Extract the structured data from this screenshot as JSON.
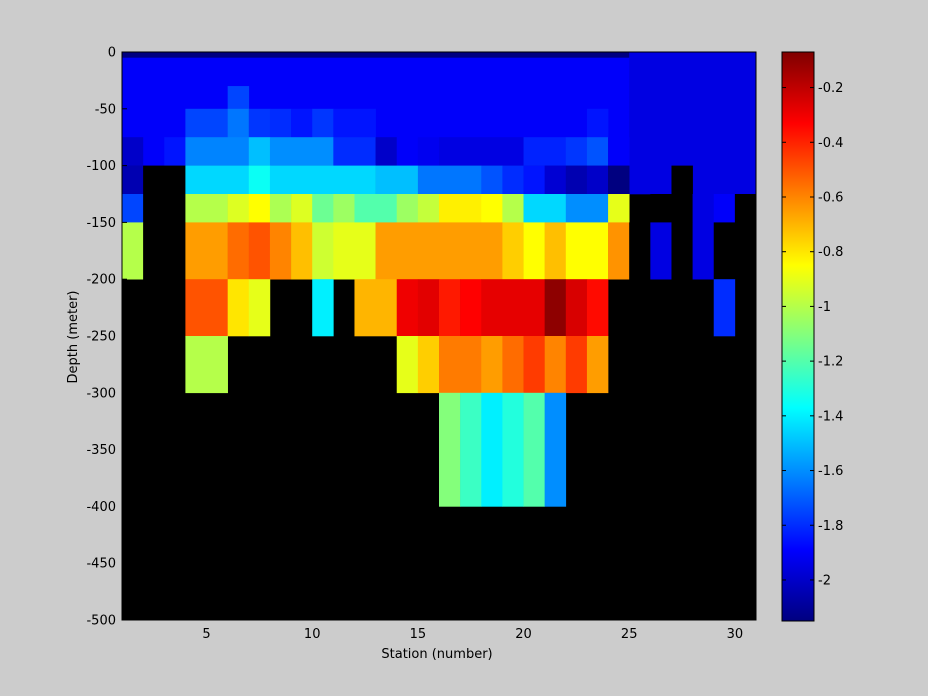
{
  "chart_data": {
    "type": "heatmap",
    "title": "",
    "xlabel": "Station (number)",
    "ylabel": "Depth (meter)",
    "xlim": [
      1,
      31
    ],
    "ylim": [
      -500,
      0
    ],
    "xticks": [
      5,
      10,
      15,
      20,
      25,
      30
    ],
    "yticks": [
      0,
      -50,
      -100,
      -150,
      -200,
      -250,
      -300,
      -350,
      -400,
      -450,
      -500
    ],
    "colorbar": {
      "range": [
        -2.15,
        -0.07
      ],
      "ticks": [
        -0.2,
        -0.4,
        -0.6,
        -0.8,
        -1,
        -1.2,
        -1.4,
        -1.6,
        -1.8,
        -2
      ],
      "colormap": "jet",
      "low_color": "#0000ff",
      "high_color": "#800000"
    },
    "background_color": "#000000",
    "cells": [
      {
        "x0": 1,
        "x1": 25,
        "y0": -5,
        "y1": 0,
        "v": -2.15
      },
      {
        "x0": 1,
        "x1": 25,
        "y0": -75,
        "y1": -5,
        "v": -1.9
      },
      {
        "x0": 25,
        "x1": 31,
        "y0": -125,
        "y1": 0,
        "v": -1.95
      },
      {
        "x0": 6,
        "x1": 7,
        "y0": -50,
        "y1": -30,
        "v": -1.75
      },
      {
        "x0": 4,
        "x1": 6,
        "y0": -75,
        "y1": -50,
        "v": -1.75
      },
      {
        "x0": 6,
        "x1": 7,
        "y0": -75,
        "y1": -50,
        "v": -1.65
      },
      {
        "x0": 7,
        "x1": 8,
        "y0": -75,
        "y1": -50,
        "v": -1.78
      },
      {
        "x0": 8,
        "x1": 9,
        "y0": -75,
        "y1": -50,
        "v": -1.8
      },
      {
        "x0": 9,
        "x1": 10,
        "y0": -75,
        "y1": -50,
        "v": -1.85
      },
      {
        "x0": 10,
        "x1": 11,
        "y0": -75,
        "y1": -50,
        "v": -1.78
      },
      {
        "x0": 11,
        "x1": 13,
        "y0": -75,
        "y1": -50,
        "v": -1.85
      },
      {
        "x0": 23,
        "x1": 24,
        "y0": -75,
        "y1": -50,
        "v": -1.85
      },
      {
        "x0": 1,
        "x1": 2,
        "y0": -100,
        "y1": -75,
        "v": -2.0
      },
      {
        "x0": 2,
        "x1": 3,
        "y0": -100,
        "y1": -75,
        "v": -1.9
      },
      {
        "x0": 3,
        "x1": 4,
        "y0": -100,
        "y1": -75,
        "v": -1.85
      },
      {
        "x0": 4,
        "x1": 7,
        "y0": -100,
        "y1": -75,
        "v": -1.62
      },
      {
        "x0": 7,
        "x1": 8,
        "y0": -100,
        "y1": -75,
        "v": -1.5
      },
      {
        "x0": 8,
        "x1": 11,
        "y0": -100,
        "y1": -75,
        "v": -1.6
      },
      {
        "x0": 11,
        "x1": 13,
        "y0": -100,
        "y1": -75,
        "v": -1.8
      },
      {
        "x0": 13,
        "x1": 14,
        "y0": -100,
        "y1": -75,
        "v": -2.0
      },
      {
        "x0": 14,
        "x1": 15,
        "y0": -100,
        "y1": -75,
        "v": -1.9
      },
      {
        "x0": 15,
        "x1": 16,
        "y0": -100,
        "y1": -75,
        "v": -1.92
      },
      {
        "x0": 16,
        "x1": 20,
        "y0": -100,
        "y1": -75,
        "v": -1.95
      },
      {
        "x0": 20,
        "x1": 22,
        "y0": -100,
        "y1": -75,
        "v": -1.82
      },
      {
        "x0": 22,
        "x1": 23,
        "y0": -100,
        "y1": -75,
        "v": -1.78
      },
      {
        "x0": 23,
        "x1": 24,
        "y0": -100,
        "y1": -75,
        "v": -1.72
      },
      {
        "x0": 24,
        "x1": 25,
        "y0": -100,
        "y1": -75,
        "v": -1.9
      },
      {
        "x0": 1,
        "x1": 2,
        "y0": -125,
        "y1": -100,
        "v": -2.05
      },
      {
        "x0": 2,
        "x1": 4,
        "y0": -125,
        "y1": -100,
        "v": null
      },
      {
        "x0": 4,
        "x1": 7,
        "y0": -125,
        "y1": -100,
        "v": -1.45
      },
      {
        "x0": 7,
        "x1": 8,
        "y0": -125,
        "y1": -100,
        "v": -1.35
      },
      {
        "x0": 8,
        "x1": 13,
        "y0": -125,
        "y1": -100,
        "v": -1.45
      },
      {
        "x0": 13,
        "x1": 15,
        "y0": -125,
        "y1": -100,
        "v": -1.5
      },
      {
        "x0": 15,
        "x1": 18,
        "y0": -125,
        "y1": -100,
        "v": -1.65
      },
      {
        "x0": 18,
        "x1": 19,
        "y0": -125,
        "y1": -100,
        "v": -1.72
      },
      {
        "x0": 19,
        "x1": 20,
        "y0": -125,
        "y1": -100,
        "v": -1.8
      },
      {
        "x0": 20,
        "x1": 21,
        "y0": -125,
        "y1": -100,
        "v": -1.85
      },
      {
        "x0": 21,
        "x1": 22,
        "y0": -125,
        "y1": -100,
        "v": -1.98
      },
      {
        "x0": 22,
        "x1": 23,
        "y0": -125,
        "y1": -100,
        "v": -2.05
      },
      {
        "x0": 23,
        "x1": 24,
        "y0": -125,
        "y1": -100,
        "v": -2.0
      },
      {
        "x0": 24,
        "x1": 25,
        "y0": -125,
        "y1": -100,
        "v": -2.15
      },
      {
        "x0": 27,
        "x1": 28,
        "y0": -125,
        "y1": -100,
        "v": null
      },
      {
        "x0": 1,
        "x1": 2,
        "y0": -150,
        "y1": -125,
        "v": -1.75
      },
      {
        "x0": 2,
        "x1": 4,
        "y0": -150,
        "y1": -125,
        "v": null
      },
      {
        "x0": 4,
        "x1": 6,
        "y0": -150,
        "y1": -125,
        "v": -1.0
      },
      {
        "x0": 6,
        "x1": 7,
        "y0": -150,
        "y1": -125,
        "v": -0.92
      },
      {
        "x0": 7,
        "x1": 8,
        "y0": -150,
        "y1": -125,
        "v": -0.85
      },
      {
        "x0": 8,
        "x1": 9,
        "y0": -150,
        "y1": -125,
        "v": -1.02
      },
      {
        "x0": 9,
        "x1": 10,
        "y0": -150,
        "y1": -125,
        "v": -0.92
      },
      {
        "x0": 10,
        "x1": 11,
        "y0": -150,
        "y1": -125,
        "v": -1.15
      },
      {
        "x0": 11,
        "x1": 12,
        "y0": -150,
        "y1": -125,
        "v": -1.05
      },
      {
        "x0": 12,
        "x1": 14,
        "y0": -150,
        "y1": -125,
        "v": -1.2
      },
      {
        "x0": 14,
        "x1": 15,
        "y0": -150,
        "y1": -125,
        "v": -1.05
      },
      {
        "x0": 15,
        "x1": 16,
        "y0": -150,
        "y1": -125,
        "v": -0.97
      },
      {
        "x0": 16,
        "x1": 18,
        "y0": -150,
        "y1": -125,
        "v": -0.82
      },
      {
        "x0": 18,
        "x1": 19,
        "y0": -150,
        "y1": -125,
        "v": -0.85
      },
      {
        "x0": 19,
        "x1": 20,
        "y0": -150,
        "y1": -125,
        "v": -1.0
      },
      {
        "x0": 20,
        "x1": 22,
        "y0": -150,
        "y1": -125,
        "v": -1.45
      },
      {
        "x0": 22,
        "x1": 24,
        "y0": -150,
        "y1": -125,
        "v": -1.6
      },
      {
        "x0": 24,
        "x1": 25,
        "y0": -150,
        "y1": -125,
        "v": -0.9
      },
      {
        "x0": 26,
        "x1": 28,
        "y0": -150,
        "y1": -125,
        "v": null
      },
      {
        "x0": 28,
        "x1": 29,
        "y0": -150,
        "y1": -125,
        "v": -1.95
      },
      {
        "x0": 29,
        "x1": 30,
        "y0": -150,
        "y1": -125,
        "v": -1.9
      },
      {
        "x0": 30,
        "x1": 31,
        "y0": -150,
        "y1": -125,
        "v": null
      },
      {
        "x0": 1,
        "x1": 2,
        "y0": -200,
        "y1": -150,
        "v": -1.0
      },
      {
        "x0": 2,
        "x1": 4,
        "y0": -200,
        "y1": -150,
        "v": null
      },
      {
        "x0": 4,
        "x1": 6,
        "y0": -200,
        "y1": -150,
        "v": -0.65
      },
      {
        "x0": 6,
        "x1": 7,
        "y0": -200,
        "y1": -150,
        "v": -0.55
      },
      {
        "x0": 7,
        "x1": 8,
        "y0": -200,
        "y1": -150,
        "v": -0.5
      },
      {
        "x0": 8,
        "x1": 9,
        "y0": -200,
        "y1": -150,
        "v": -0.6
      },
      {
        "x0": 9,
        "x1": 10,
        "y0": -200,
        "y1": -150,
        "v": -0.72
      },
      {
        "x0": 10,
        "x1": 11,
        "y0": -200,
        "y1": -150,
        "v": -0.95
      },
      {
        "x0": 11,
        "x1": 13,
        "y0": -200,
        "y1": -150,
        "v": -0.9
      },
      {
        "x0": 13,
        "x1": 19,
        "y0": -200,
        "y1": -150,
        "v": -0.65
      },
      {
        "x0": 19,
        "x1": 20,
        "y0": -200,
        "y1": -150,
        "v": -0.75
      },
      {
        "x0": 20,
        "x1": 21,
        "y0": -200,
        "y1": -150,
        "v": -0.85
      },
      {
        "x0": 21,
        "x1": 22,
        "y0": -200,
        "y1": -150,
        "v": -0.72
      },
      {
        "x0": 22,
        "x1": 24,
        "y0": -200,
        "y1": -150,
        "v": -0.85
      },
      {
        "x0": 24,
        "x1": 25,
        "y0": -200,
        "y1": -150,
        "v": -0.63
      },
      {
        "x0": 25,
        "x1": 26,
        "y0": -200,
        "y1": -150,
        "v": null
      },
      {
        "x0": 26,
        "x1": 27,
        "y0": -200,
        "y1": -150,
        "v": -1.95
      },
      {
        "x0": 27,
        "x1": 28,
        "y0": -200,
        "y1": -150,
        "v": null
      },
      {
        "x0": 28,
        "x1": 29,
        "y0": -200,
        "y1": -150,
        "v": -1.95
      },
      {
        "x0": 29,
        "x1": 31,
        "y0": -200,
        "y1": -150,
        "v": null
      },
      {
        "x0": 4,
        "x1": 6,
        "y0": -250,
        "y1": -200,
        "v": -0.5
      },
      {
        "x0": 6,
        "x1": 7,
        "y0": -250,
        "y1": -200,
        "v": -0.8
      },
      {
        "x0": 7,
        "x1": 8,
        "y0": -250,
        "y1": -200,
        "v": -0.9
      },
      {
        "x0": 10,
        "x1": 11,
        "y0": -250,
        "y1": -200,
        "v": -1.4
      },
      {
        "x0": 12,
        "x1": 14,
        "y0": -250,
        "y1": -200,
        "v": -0.7
      },
      {
        "x0": 14,
        "x1": 15,
        "y0": -250,
        "y1": -200,
        "v": -0.3
      },
      {
        "x0": 15,
        "x1": 16,
        "y0": -250,
        "y1": -200,
        "v": -0.27
      },
      {
        "x0": 16,
        "x1": 17,
        "y0": -250,
        "y1": -200,
        "v": -0.38
      },
      {
        "x0": 17,
        "x1": 18,
        "y0": -250,
        "y1": -200,
        "v": -0.33
      },
      {
        "x0": 18,
        "x1": 21,
        "y0": -250,
        "y1": -200,
        "v": -0.28
      },
      {
        "x0": 21,
        "x1": 22,
        "y0": -250,
        "y1": -200,
        "v": -0.1
      },
      {
        "x0": 22,
        "x1": 23,
        "y0": -250,
        "y1": -200,
        "v": -0.25
      },
      {
        "x0": 23,
        "x1": 24,
        "y0": -250,
        "y1": -200,
        "v": -0.35
      },
      {
        "x0": 29,
        "x1": 30,
        "y0": -250,
        "y1": -200,
        "v": -1.8
      },
      {
        "x0": 4,
        "x1": 6,
        "y0": -300,
        "y1": -250,
        "v": -1.0
      },
      {
        "x0": 14,
        "x1": 15,
        "y0": -300,
        "y1": -250,
        "v": -0.9
      },
      {
        "x0": 15,
        "x1": 16,
        "y0": -300,
        "y1": -250,
        "v": -0.75
      },
      {
        "x0": 16,
        "x1": 18,
        "y0": -300,
        "y1": -250,
        "v": -0.58
      },
      {
        "x0": 18,
        "x1": 19,
        "y0": -300,
        "y1": -250,
        "v": -0.65
      },
      {
        "x0": 19,
        "x1": 20,
        "y0": -300,
        "y1": -250,
        "v": -0.55
      },
      {
        "x0": 20,
        "x1": 21,
        "y0": -300,
        "y1": -250,
        "v": -0.45
      },
      {
        "x0": 21,
        "x1": 22,
        "y0": -300,
        "y1": -250,
        "v": -0.6
      },
      {
        "x0": 22,
        "x1": 23,
        "y0": -300,
        "y1": -250,
        "v": -0.45
      },
      {
        "x0": 23,
        "x1": 24,
        "y0": -300,
        "y1": -250,
        "v": -0.65
      },
      {
        "x0": 16,
        "x1": 17,
        "y0": -400,
        "y1": -300,
        "v": -1.1
      },
      {
        "x0": 17,
        "x1": 18,
        "y0": -400,
        "y1": -300,
        "v": -1.25
      },
      {
        "x0": 18,
        "x1": 19,
        "y0": -400,
        "y1": -300,
        "v": -1.4
      },
      {
        "x0": 19,
        "x1": 20,
        "y0": -400,
        "y1": -300,
        "v": -1.3
      },
      {
        "x0": 20,
        "x1": 21,
        "y0": -400,
        "y1": -300,
        "v": -1.2
      },
      {
        "x0": 21,
        "x1": 22,
        "y0": -400,
        "y1": -300,
        "v": -1.6
      }
    ]
  }
}
